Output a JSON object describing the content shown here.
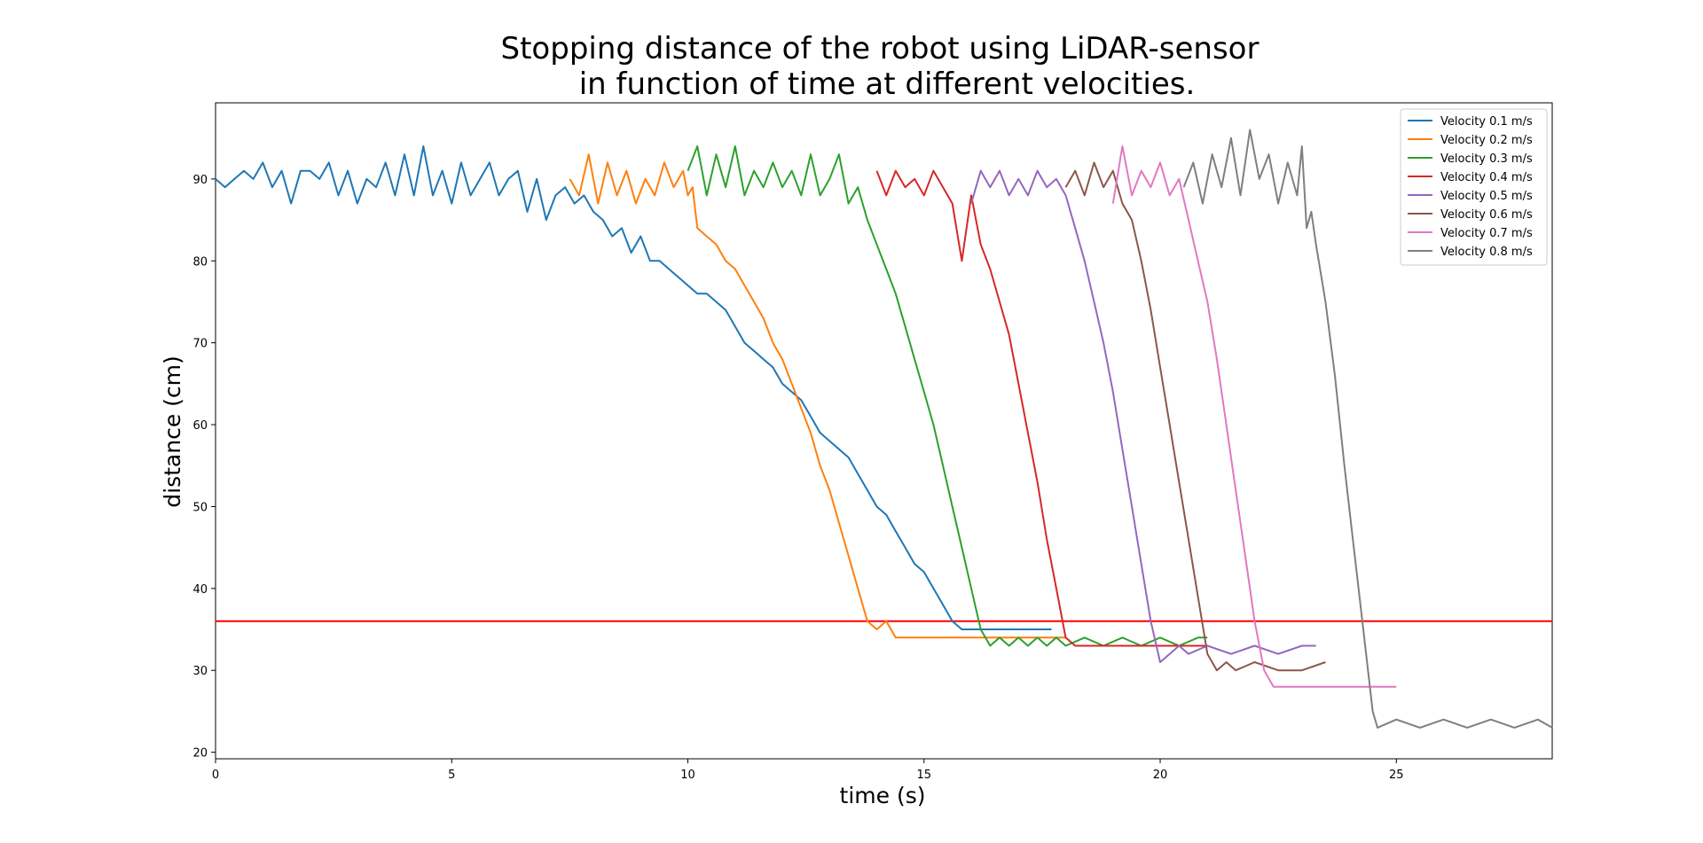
{
  "chart_data": {
    "type": "line",
    "title_lines": [
      "Stopping distance of the robot using LiDAR-sensor",
      "in function of time at different velocities."
    ],
    "xlabel": "time (s)",
    "ylabel": "distance (cm)",
    "xlim": [
      0,
      28.3
    ],
    "ylim": [
      19.2,
      99.3
    ],
    "xticks": [
      0,
      5,
      10,
      15,
      20,
      25
    ],
    "yticks": [
      20,
      30,
      40,
      50,
      60,
      70,
      80,
      90
    ],
    "grid": false,
    "legend": "top-right",
    "threshold": {
      "y": 36,
      "color": "#ff0000"
    },
    "series": [
      {
        "name": "Velocity 0.1 m/s",
        "color": "#1f77b4",
        "points": [
          [
            0,
            90
          ],
          [
            0.2,
            89
          ],
          [
            0.4,
            90
          ],
          [
            0.6,
            91
          ],
          [
            0.8,
            90
          ],
          [
            1,
            92
          ],
          [
            1.2,
            89
          ],
          [
            1.4,
            91
          ],
          [
            1.6,
            87
          ],
          [
            1.8,
            91
          ],
          [
            2,
            91
          ],
          [
            2.2,
            90
          ],
          [
            2.4,
            92
          ],
          [
            2.6,
            88
          ],
          [
            2.8,
            91
          ],
          [
            3,
            87
          ],
          [
            3.2,
            90
          ],
          [
            3.4,
            89
          ],
          [
            3.6,
            92
          ],
          [
            3.8,
            88
          ],
          [
            4,
            93
          ],
          [
            4.2,
            88
          ],
          [
            4.4,
            94
          ],
          [
            4.6,
            88
          ],
          [
            4.8,
            91
          ],
          [
            5,
            87
          ],
          [
            5.2,
            92
          ],
          [
            5.4,
            88
          ],
          [
            5.6,
            90
          ],
          [
            5.8,
            92
          ],
          [
            6,
            88
          ],
          [
            6.2,
            90
          ],
          [
            6.4,
            91
          ],
          [
            6.6,
            86
          ],
          [
            6.8,
            90
          ],
          [
            7,
            85
          ],
          [
            7.2,
            88
          ],
          [
            7.4,
            89
          ],
          [
            7.6,
            87
          ],
          [
            7.8,
            88
          ],
          [
            8,
            86
          ],
          [
            8.2,
            85
          ],
          [
            8.4,
            83
          ],
          [
            8.6,
            84
          ],
          [
            8.8,
            81
          ],
          [
            9,
            83
          ],
          [
            9.2,
            80
          ],
          [
            9.4,
            80
          ],
          [
            9.6,
            79
          ],
          [
            9.8,
            78
          ],
          [
            10,
            77
          ],
          [
            10.2,
            76
          ],
          [
            10.4,
            76
          ],
          [
            10.6,
            75
          ],
          [
            10.8,
            74
          ],
          [
            11,
            72
          ],
          [
            11.2,
            70
          ],
          [
            11.4,
            69
          ],
          [
            11.6,
            68
          ],
          [
            11.8,
            67
          ],
          [
            12,
            65
          ],
          [
            12.2,
            64
          ],
          [
            12.4,
            63
          ],
          [
            12.6,
            61
          ],
          [
            12.8,
            59
          ],
          [
            13,
            58
          ],
          [
            13.2,
            57
          ],
          [
            13.4,
            56
          ],
          [
            13.6,
            54
          ],
          [
            13.8,
            52
          ],
          [
            14,
            50
          ],
          [
            14.2,
            49
          ],
          [
            14.4,
            47
          ],
          [
            14.6,
            45
          ],
          [
            14.8,
            43
          ],
          [
            15,
            42
          ],
          [
            15.2,
            40
          ],
          [
            15.4,
            38
          ],
          [
            15.6,
            36
          ],
          [
            15.8,
            35
          ],
          [
            16,
            35
          ],
          [
            16.5,
            35
          ],
          [
            17,
            35
          ],
          [
            17.5,
            35
          ],
          [
            17.7,
            35
          ]
        ]
      },
      {
        "name": "Velocity 0.2 m/s",
        "color": "#ff7f0e",
        "points": [
          [
            7.5,
            90
          ],
          [
            7.7,
            88
          ],
          [
            7.9,
            93
          ],
          [
            8.1,
            87
          ],
          [
            8.3,
            92
          ],
          [
            8.5,
            88
          ],
          [
            8.7,
            91
          ],
          [
            8.9,
            87
          ],
          [
            9.1,
            90
          ],
          [
            9.3,
            88
          ],
          [
            9.5,
            92
          ],
          [
            9.7,
            89
          ],
          [
            9.9,
            91
          ],
          [
            10,
            88
          ],
          [
            10.1,
            89
          ],
          [
            10.2,
            84
          ],
          [
            10.4,
            83
          ],
          [
            10.6,
            82
          ],
          [
            10.8,
            80
          ],
          [
            11,
            79
          ],
          [
            11.2,
            77
          ],
          [
            11.4,
            75
          ],
          [
            11.6,
            73
          ],
          [
            11.8,
            70
          ],
          [
            12,
            68
          ],
          [
            12.2,
            65
          ],
          [
            12.4,
            62
          ],
          [
            12.6,
            59
          ],
          [
            12.8,
            55
          ],
          [
            13,
            52
          ],
          [
            13.2,
            48
          ],
          [
            13.4,
            44
          ],
          [
            13.6,
            40
          ],
          [
            13.8,
            36
          ],
          [
            14,
            35
          ],
          [
            14.2,
            36
          ],
          [
            14.4,
            34
          ],
          [
            15,
            34
          ],
          [
            16,
            34
          ],
          [
            17,
            34
          ],
          [
            18,
            34
          ]
        ]
      },
      {
        "name": "Velocity 0.3 m/s",
        "color": "#2ca02c",
        "points": [
          [
            10,
            91
          ],
          [
            10.2,
            94
          ],
          [
            10.4,
            88
          ],
          [
            10.6,
            93
          ],
          [
            10.8,
            89
          ],
          [
            11,
            94
          ],
          [
            11.2,
            88
          ],
          [
            11.4,
            91
          ],
          [
            11.6,
            89
          ],
          [
            11.8,
            92
          ],
          [
            12,
            89
          ],
          [
            12.2,
            91
          ],
          [
            12.4,
            88
          ],
          [
            12.6,
            93
          ],
          [
            12.8,
            88
          ],
          [
            13,
            90
          ],
          [
            13.2,
            93
          ],
          [
            13.4,
            87
          ],
          [
            13.6,
            89
          ],
          [
            13.8,
            85
          ],
          [
            14,
            82
          ],
          [
            14.2,
            79
          ],
          [
            14.4,
            76
          ],
          [
            14.6,
            72
          ],
          [
            14.8,
            68
          ],
          [
            15,
            64
          ],
          [
            15.2,
            60
          ],
          [
            15.4,
            55
          ],
          [
            15.6,
            50
          ],
          [
            15.8,
            45
          ],
          [
            16,
            40
          ],
          [
            16.2,
            35
          ],
          [
            16.4,
            33
          ],
          [
            16.6,
            34
          ],
          [
            16.8,
            33
          ],
          [
            17,
            34
          ],
          [
            17.2,
            33
          ],
          [
            17.4,
            34
          ],
          [
            17.6,
            33
          ],
          [
            17.8,
            34
          ],
          [
            18,
            33
          ],
          [
            18.4,
            34
          ],
          [
            18.8,
            33
          ],
          [
            19.2,
            34
          ],
          [
            19.6,
            33
          ],
          [
            20,
            34
          ],
          [
            20.4,
            33
          ],
          [
            20.8,
            34
          ],
          [
            21,
            34
          ]
        ]
      },
      {
        "name": "Velocity 0.4 m/s",
        "color": "#d62728",
        "points": [
          [
            14,
            91
          ],
          [
            14.2,
            88
          ],
          [
            14.4,
            91
          ],
          [
            14.6,
            89
          ],
          [
            14.8,
            90
          ],
          [
            15,
            88
          ],
          [
            15.2,
            91
          ],
          [
            15.4,
            89
          ],
          [
            15.6,
            87
          ],
          [
            15.8,
            80
          ],
          [
            16,
            88
          ],
          [
            16.2,
            82
          ],
          [
            16.4,
            79
          ],
          [
            16.6,
            75
          ],
          [
            16.8,
            71
          ],
          [
            17,
            65
          ],
          [
            17.2,
            59
          ],
          [
            17.4,
            53
          ],
          [
            17.6,
            46
          ],
          [
            17.8,
            40
          ],
          [
            18,
            34
          ],
          [
            18.2,
            33
          ],
          [
            19,
            33
          ],
          [
            20,
            33
          ],
          [
            21,
            33
          ]
        ]
      },
      {
        "name": "Velocity 0.5 m/s",
        "color": "#9467bd",
        "points": [
          [
            16,
            87
          ],
          [
            16.2,
            91
          ],
          [
            16.4,
            89
          ],
          [
            16.6,
            91
          ],
          [
            16.8,
            88
          ],
          [
            17,
            90
          ],
          [
            17.2,
            88
          ],
          [
            17.4,
            91
          ],
          [
            17.6,
            89
          ],
          [
            17.8,
            90
          ],
          [
            18,
            88
          ],
          [
            18.2,
            84
          ],
          [
            18.4,
            80
          ],
          [
            18.6,
            75
          ],
          [
            18.8,
            70
          ],
          [
            19,
            64
          ],
          [
            19.2,
            57
          ],
          [
            19.4,
            50
          ],
          [
            19.6,
            43
          ],
          [
            19.8,
            36
          ],
          [
            20,
            31
          ],
          [
            20.2,
            32
          ],
          [
            20.4,
            33
          ],
          [
            20.6,
            32
          ],
          [
            21,
            33
          ],
          [
            21.5,
            32
          ],
          [
            22,
            33
          ],
          [
            22.5,
            32
          ],
          [
            23,
            33
          ],
          [
            23.3,
            33
          ]
        ]
      },
      {
        "name": "Velocity 0.6 m/s",
        "color": "#8c564b",
        "points": [
          [
            18,
            89
          ],
          [
            18.2,
            91
          ],
          [
            18.4,
            88
          ],
          [
            18.6,
            92
          ],
          [
            18.8,
            89
          ],
          [
            19,
            91
          ],
          [
            19.2,
            87
          ],
          [
            19.4,
            85
          ],
          [
            19.6,
            80
          ],
          [
            19.8,
            74
          ],
          [
            20,
            67
          ],
          [
            20.2,
            60
          ],
          [
            20.4,
            53
          ],
          [
            20.6,
            46
          ],
          [
            20.8,
            39
          ],
          [
            21,
            32
          ],
          [
            21.2,
            30
          ],
          [
            21.4,
            31
          ],
          [
            21.6,
            30
          ],
          [
            22,
            31
          ],
          [
            22.5,
            30
          ],
          [
            23,
            30
          ],
          [
            23.5,
            31
          ]
        ]
      },
      {
        "name": "Velocity 0.7 m/s",
        "color": "#e377c2",
        "points": [
          [
            19,
            87
          ],
          [
            19.2,
            94
          ],
          [
            19.4,
            88
          ],
          [
            19.6,
            91
          ],
          [
            19.8,
            89
          ],
          [
            20,
            92
          ],
          [
            20.2,
            88
          ],
          [
            20.4,
            90
          ],
          [
            20.6,
            85
          ],
          [
            20.8,
            80
          ],
          [
            21,
            75
          ],
          [
            21.2,
            68
          ],
          [
            21.4,
            60
          ],
          [
            21.6,
            52
          ],
          [
            21.8,
            44
          ],
          [
            22,
            36
          ],
          [
            22.2,
            30
          ],
          [
            22.4,
            28
          ],
          [
            23,
            28
          ],
          [
            24,
            28
          ],
          [
            25,
            28
          ]
        ]
      },
      {
        "name": "Velocity 0.8 m/s",
        "color": "#7f7f7f",
        "points": [
          [
            20.5,
            89
          ],
          [
            20.7,
            92
          ],
          [
            20.9,
            87
          ],
          [
            21.1,
            93
          ],
          [
            21.3,
            89
          ],
          [
            21.5,
            95
          ],
          [
            21.7,
            88
          ],
          [
            21.9,
            96
          ],
          [
            22.1,
            90
          ],
          [
            22.3,
            93
          ],
          [
            22.5,
            87
          ],
          [
            22.7,
            92
          ],
          [
            22.9,
            88
          ],
          [
            23,
            94
          ],
          [
            23.1,
            84
          ],
          [
            23.2,
            86
          ],
          [
            23.3,
            82
          ],
          [
            23.5,
            75
          ],
          [
            23.7,
            66
          ],
          [
            23.9,
            55
          ],
          [
            24.1,
            45
          ],
          [
            24.3,
            35
          ],
          [
            24.5,
            25
          ],
          [
            24.6,
            23
          ],
          [
            25,
            24
          ],
          [
            25.5,
            23
          ],
          [
            26,
            24
          ],
          [
            26.5,
            23
          ],
          [
            27,
            24
          ],
          [
            27.5,
            23
          ],
          [
            28,
            24
          ],
          [
            28.3,
            23
          ]
        ]
      }
    ]
  }
}
